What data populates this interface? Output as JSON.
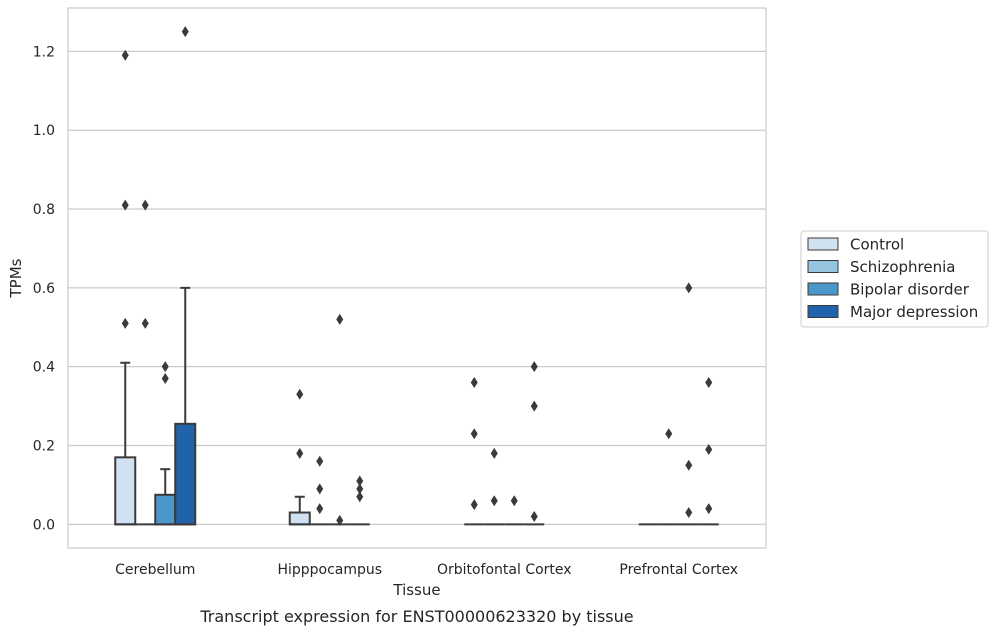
{
  "caption": "Transcript expression for ENST00000623320 by tissue",
  "chart_data": {
    "type": "box",
    "xlabel": "Tissue",
    "ylabel": "TPMs",
    "ylim": [
      -0.06,
      1.31
    ],
    "yticks": [
      0.0,
      0.2,
      0.4,
      0.6,
      0.8,
      1.0,
      1.2
    ],
    "ytick_labels": [
      "0.0",
      "0.2",
      "0.4",
      "0.6",
      "0.8",
      "1.0",
      "1.2"
    ],
    "grid": "horizontal",
    "legend_position": "right",
    "categories": [
      "Cerebellum",
      "Hipppocampus",
      "Orbitofontal Cortex",
      "Prefrontal Cortex"
    ],
    "series": [
      {
        "name": "Control",
        "color": "#d0e1f2",
        "boxes": [
          {
            "q1": 0.0,
            "median": 0.0,
            "q3": 0.17,
            "whisker_low": 0.0,
            "whisker_high": 0.41,
            "outliers": [
              1.19,
              0.81,
              0.51
            ]
          },
          {
            "q1": 0.0,
            "median": 0.0,
            "q3": 0.03,
            "whisker_low": 0.0,
            "whisker_high": 0.07,
            "outliers": [
              0.33,
              0.18
            ]
          },
          {
            "q1": 0.0,
            "median": 0.0,
            "q3": 0.0,
            "whisker_low": 0.0,
            "whisker_high": 0.0,
            "outliers": [
              0.36,
              0.23,
              0.05
            ]
          },
          {
            "q1": 0.0,
            "median": 0.0,
            "q3": 0.0,
            "whisker_low": 0.0,
            "whisker_high": 0.0,
            "outliers": []
          }
        ]
      },
      {
        "name": "Schizophrenia",
        "color": "#94c4df",
        "boxes": [
          {
            "q1": 0.0,
            "median": 0.0,
            "q3": 0.0,
            "whisker_low": 0.0,
            "whisker_high": 0.0,
            "outliers": [
              0.81,
              0.51
            ]
          },
          {
            "q1": 0.0,
            "median": 0.0,
            "q3": 0.0,
            "whisker_low": 0.0,
            "whisker_high": 0.0,
            "outliers": [
              0.16,
              0.09,
              0.04
            ]
          },
          {
            "q1": 0.0,
            "median": 0.0,
            "q3": 0.0,
            "whisker_low": 0.0,
            "whisker_high": 0.0,
            "outliers": [
              0.18,
              0.06
            ]
          },
          {
            "q1": 0.0,
            "median": 0.0,
            "q3": 0.0,
            "whisker_low": 0.0,
            "whisker_high": 0.0,
            "outliers": [
              0.23
            ]
          }
        ]
      },
      {
        "name": "Bipolar disorder",
        "color": "#4a98c9",
        "boxes": [
          {
            "q1": 0.0,
            "median": 0.0,
            "q3": 0.075,
            "whisker_low": 0.0,
            "whisker_high": 0.14,
            "outliers": [
              0.4,
              0.37
            ]
          },
          {
            "q1": 0.0,
            "median": 0.0,
            "q3": 0.0,
            "whisker_low": 0.0,
            "whisker_high": 0.0,
            "outliers": [
              0.52,
              0.01
            ]
          },
          {
            "q1": 0.0,
            "median": 0.0,
            "q3": 0.0,
            "whisker_low": 0.0,
            "whisker_high": 0.0,
            "outliers": [
              0.06
            ]
          },
          {
            "q1": 0.0,
            "median": 0.0,
            "q3": 0.0,
            "whisker_low": 0.0,
            "whisker_high": 0.0,
            "outliers": [
              0.6,
              0.15,
              0.03
            ]
          }
        ]
      },
      {
        "name": "Major depression",
        "color": "#2163aa",
        "boxes": [
          {
            "q1": 0.0,
            "median": 0.0,
            "q3": 0.255,
            "whisker_low": 0.0,
            "whisker_high": 0.6,
            "outliers": [
              1.25
            ]
          },
          {
            "q1": 0.0,
            "median": 0.0,
            "q3": 0.0,
            "whisker_low": 0.0,
            "whisker_high": 0.0,
            "outliers": [
              0.11,
              0.09,
              0.07
            ]
          },
          {
            "q1": 0.0,
            "median": 0.0,
            "q3": 0.0,
            "whisker_low": 0.0,
            "whisker_high": 0.0,
            "outliers": [
              0.4,
              0.3,
              0.02
            ]
          },
          {
            "q1": 0.0,
            "median": 0.0,
            "q3": 0.0,
            "whisker_low": 0.0,
            "whisker_high": 0.0,
            "outliers": [
              0.36,
              0.19,
              0.04
            ]
          }
        ]
      }
    ]
  }
}
